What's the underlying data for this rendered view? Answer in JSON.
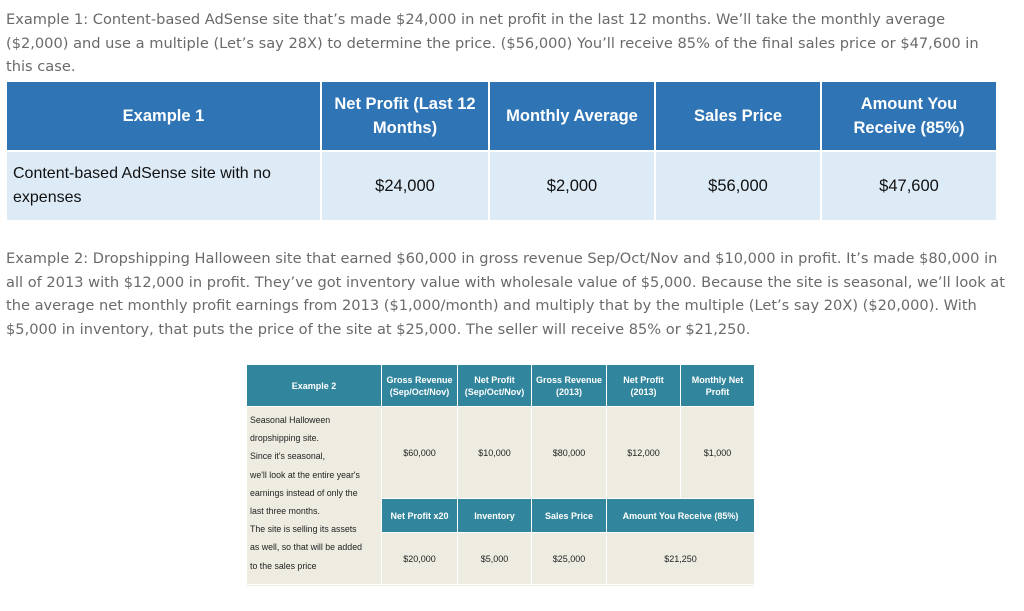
{
  "example1": {
    "intro": "Example 1: Content-based AdSense site that’s made $24,000 in net profit in the last 12 months. We’ll take the monthly average ($2,000) and use a multiple (Let’s say 28X) to determine the price. ($56,000) You’ll receive 85% of the final sales price or $47,600 in this case.",
    "headers": [
      "Example 1",
      "Net Profit (Last 12 Months)",
      "Monthly Average",
      "Sales Price",
      "Amount You Receive (85%)"
    ],
    "row": {
      "description": "Content-based AdSense site with no expenses",
      "net_profit": "$24,000",
      "monthly_average": "$2,000",
      "sales_price": "$56,000",
      "amount_received": "$47,600"
    }
  },
  "example2": {
    "intro": "Example 2: Dropshipping Halloween site that earned $60,000 in gross revenue Sep/Oct/Nov  and $10,000 in profit. It’s made $80,000 in all of 2013 with $12,000 in profit. They’ve got inventory value with wholesale value of $5,000. Because the site is seasonal, we’ll look at the average net monthly profit earnings from 2013 ($1,000/month) and multiply that by the multiple (Let’s say 20X) ($20,000). With $5,000 in inventory, that puts the price of the site at $25,000. The seller will receive 85% or $21,250.",
    "headers": [
      "Example 2",
      "Gross Revenue (Sep/Oct/Nov)",
      "Net Profit (Sep/Oct/Nov)",
      "Gross Revenue (2013)",
      "Net Profit (2013)",
      "Monthly Net Profit"
    ],
    "description_lines": [
      "Seasonal Halloween",
      "dropshipping site.",
      "Since it's seasonal,",
      "we'll look at the entire year's",
      "earnings instead of only the",
      "last three months.",
      "The site is selling its assets",
      "as well, so that will be added",
      "to the sales price"
    ],
    "row1": {
      "gross_revenue_son": "$60,000",
      "net_profit_son": "$10,000",
      "gross_revenue_2013": "$80,000",
      "net_profit_2013": "$12,000",
      "monthly_net_profit": "$1,000"
    },
    "headers2": [
      "Net Profit x20",
      "Inventory",
      "Sales Price",
      "Amount You Receive (85%)"
    ],
    "row2": {
      "net_profit_x20": "$20,000",
      "inventory": "$5,000",
      "sales_price": "$25,000",
      "amount_received": "$21,250"
    }
  },
  "colors": {
    "table1_header": "#2f75b5",
    "table1_row": "#ddebf7",
    "table2_header": "#31859c",
    "table2_body": "#eeece1"
  }
}
